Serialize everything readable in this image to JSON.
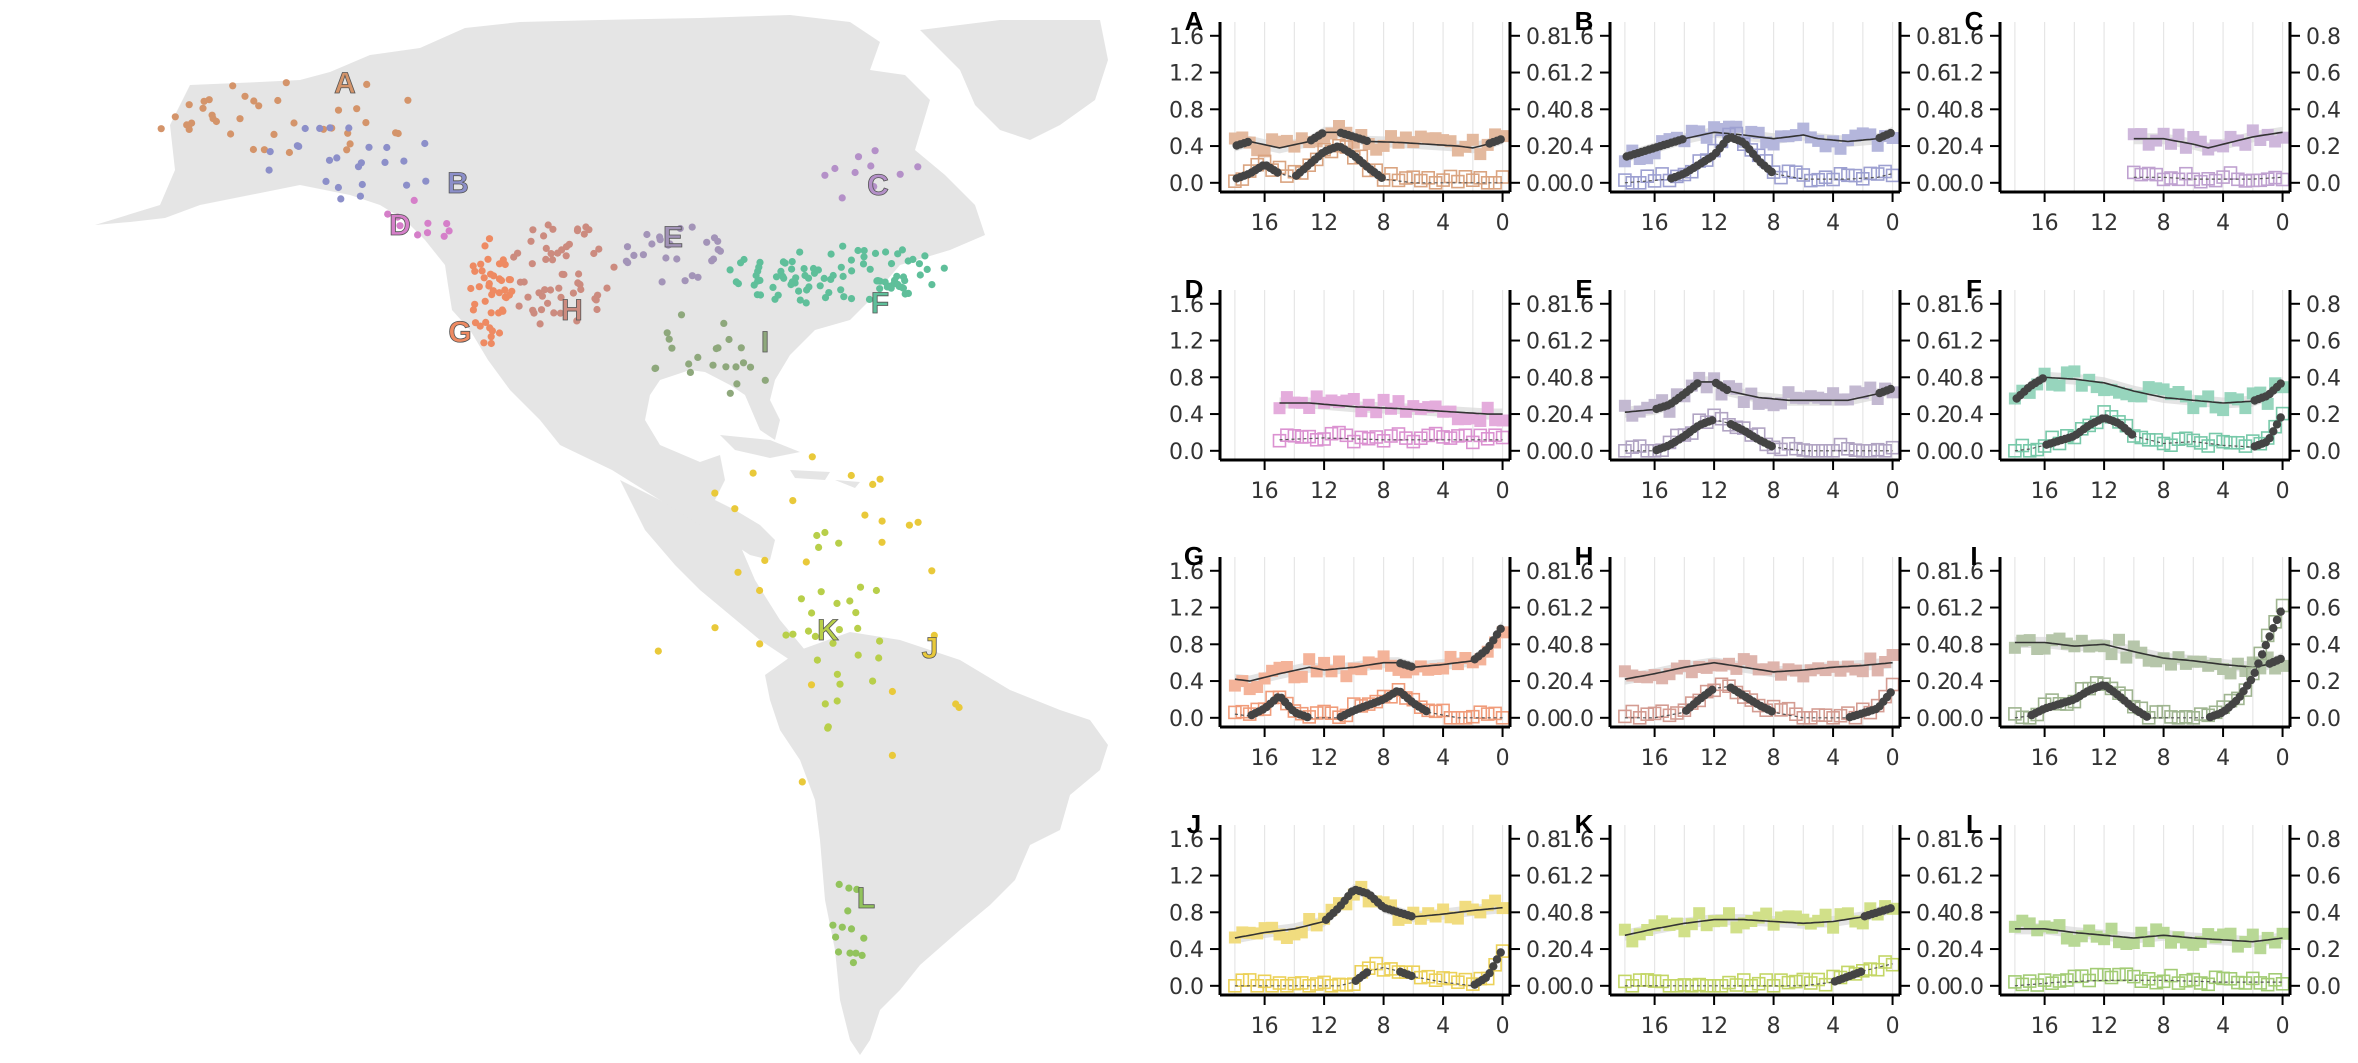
{
  "chart_data": {
    "type": "scatter",
    "description_note": "",
    "map": {
      "regions": [
        {
          "label": "A",
          "color": "#D4946A"
        },
        {
          "label": "B",
          "color": "#8C8FC9"
        },
        {
          "label": "C",
          "color": "#B490C8"
        },
        {
          "label": "D",
          "color": "#D57FC9"
        },
        {
          "label": "E",
          "color": "#A394B8"
        },
        {
          "label": "F",
          "color": "#5FBF9A"
        },
        {
          "label": "G",
          "color": "#EE8A62"
        },
        {
          "label": "H",
          "color": "#CC8B7F"
        },
        {
          "label": "I",
          "color": "#8EA87C"
        },
        {
          "label": "J",
          "color": "#E9C93A"
        },
        {
          "label": "K",
          "color": "#B8CF4A"
        },
        {
          "label": "L",
          "color": "#92C35C"
        }
      ]
    },
    "panel_axes": {
      "x_ticks": [
        "16",
        "12",
        "8",
        "4",
        "0"
      ],
      "x_tick_values": [
        16,
        12,
        8,
        4,
        0
      ],
      "xlim": [
        19,
        -0.5
      ],
      "y_left_ticks": [
        "0.0",
        "0.4",
        "0.8",
        "1.2",
        "1.6"
      ],
      "y_left_values": [
        0,
        0.4,
        0.8,
        1.2,
        1.6
      ],
      "y_left_lim": [
        -0.1,
        1.75
      ],
      "y_right_ticks": [
        "0.0",
        "0.2",
        "0.4",
        "0.6",
        "0.8"
      ],
      "y_right_values": [
        0,
        0.2,
        0.4,
        0.6,
        0.8
      ],
      "y_right_lim": [
        -0.05,
        0.875
      ]
    },
    "panels": [
      {
        "label": "A",
        "color": "#D4946A",
        "x_start": 18,
        "left_curve": [
          [
            18,
            0.4
          ],
          [
            17,
            0.45
          ],
          [
            15,
            0.38
          ],
          [
            13,
            0.45
          ],
          [
            12,
            0.55
          ],
          [
            11,
            0.55
          ],
          [
            9,
            0.45
          ],
          [
            7,
            0.44
          ],
          [
            5,
            0.42
          ],
          [
            3,
            0.4
          ],
          [
            2,
            0.38
          ],
          [
            1,
            0.42
          ],
          [
            0,
            0.48
          ]
        ],
        "right_curve": [
          [
            18,
            0.02
          ],
          [
            17,
            0.05
          ],
          [
            16,
            0.1
          ],
          [
            15,
            0.05
          ],
          [
            14,
            0.03
          ],
          [
            13,
            0.1
          ],
          [
            12,
            0.17
          ],
          [
            11,
            0.2
          ],
          [
            10,
            0.15
          ],
          [
            9,
            0.08
          ],
          [
            8,
            0.02
          ],
          [
            6,
            0.0
          ],
          [
            3,
            0.0
          ],
          [
            0,
            0.0
          ]
        ]
      },
      {
        "label": "B",
        "color": "#8C8FC9",
        "x_start": 18,
        "left_curve": [
          [
            18,
            0.28
          ],
          [
            16,
            0.38
          ],
          [
            14,
            0.48
          ],
          [
            12,
            0.55
          ],
          [
            10,
            0.52
          ],
          [
            8,
            0.48
          ],
          [
            6,
            0.52
          ],
          [
            5,
            0.48
          ],
          [
            3,
            0.45
          ],
          [
            1,
            0.48
          ],
          [
            0,
            0.55
          ]
        ],
        "right_curve": [
          [
            18,
            0.0
          ],
          [
            15,
            0.02
          ],
          [
            14,
            0.05
          ],
          [
            12,
            0.15
          ],
          [
            11,
            0.25
          ],
          [
            10,
            0.22
          ],
          [
            9,
            0.12
          ],
          [
            8,
            0.05
          ],
          [
            6,
            0.02
          ],
          [
            3,
            0.02
          ],
          [
            1,
            0.03
          ],
          [
            0,
            0.05
          ]
        ]
      },
      {
        "label": "C",
        "color": "#B490C8",
        "x_start": 10,
        "left_curve": [
          [
            10,
            0.48
          ],
          [
            8,
            0.48
          ],
          [
            6,
            0.42
          ],
          [
            5,
            0.38
          ],
          [
            4,
            0.42
          ],
          [
            2,
            0.5
          ],
          [
            0,
            0.55
          ]
        ],
        "right_curve": [
          [
            10,
            0.03
          ],
          [
            8,
            0.03
          ],
          [
            6,
            0.02
          ],
          [
            4,
            0.02
          ],
          [
            2,
            0.02
          ],
          [
            0,
            0.03
          ]
        ]
      },
      {
        "label": "D",
        "color": "#D57FC9",
        "x_start": 15,
        "left_curve": [
          [
            15,
            0.52
          ],
          [
            13,
            0.52
          ],
          [
            10,
            0.48
          ],
          [
            7,
            0.46
          ],
          [
            4,
            0.43
          ],
          [
            1,
            0.4
          ],
          [
            0,
            0.4
          ]
        ],
        "right_curve": [
          [
            15,
            0.06
          ],
          [
            12,
            0.07
          ],
          [
            8,
            0.06
          ],
          [
            4,
            0.06
          ],
          [
            0,
            0.06
          ]
        ]
      },
      {
        "label": "E",
        "color": "#A394B8",
        "x_start": 18,
        "left_curve": [
          [
            18,
            0.42
          ],
          [
            16,
            0.45
          ],
          [
            15,
            0.5
          ],
          [
            14,
            0.62
          ],
          [
            13,
            0.75
          ],
          [
            12,
            0.75
          ],
          [
            11,
            0.65
          ],
          [
            9,
            0.58
          ],
          [
            7,
            0.55
          ],
          [
            5,
            0.55
          ],
          [
            3,
            0.55
          ],
          [
            1,
            0.62
          ],
          [
            0,
            0.68
          ]
        ],
        "right_curve": [
          [
            18,
            0.0
          ],
          [
            16,
            0.0
          ],
          [
            15,
            0.03
          ],
          [
            14,
            0.08
          ],
          [
            13,
            0.14
          ],
          [
            12,
            0.17
          ],
          [
            11,
            0.15
          ],
          [
            10,
            0.11
          ],
          [
            9,
            0.06
          ],
          [
            8,
            0.02
          ],
          [
            6,
            0.0
          ],
          [
            3,
            0.0
          ],
          [
            0,
            0.0
          ]
        ]
      },
      {
        "label": "F",
        "color": "#5FBF9A",
        "x_start": 18,
        "left_curve": [
          [
            18,
            0.55
          ],
          [
            17,
            0.7
          ],
          [
            16,
            0.8
          ],
          [
            14,
            0.78
          ],
          [
            12,
            0.74
          ],
          [
            10,
            0.65
          ],
          [
            8,
            0.58
          ],
          [
            6,
            0.55
          ],
          [
            4,
            0.52
          ],
          [
            2,
            0.54
          ],
          [
            1,
            0.6
          ],
          [
            0,
            0.75
          ]
        ],
        "right_curve": [
          [
            18,
            0.0
          ],
          [
            17,
            0.01
          ],
          [
            16,
            0.03
          ],
          [
            14,
            0.08
          ],
          [
            13,
            0.14
          ],
          [
            12,
            0.18
          ],
          [
            11,
            0.15
          ],
          [
            10,
            0.08
          ],
          [
            8,
            0.04
          ],
          [
            6,
            0.05
          ],
          [
            4,
            0.03
          ],
          [
            2,
            0.02
          ],
          [
            1,
            0.05
          ],
          [
            0,
            0.2
          ]
        ]
      },
      {
        "label": "G",
        "color": "#EE8A62",
        "x_start": 18,
        "left_curve": [
          [
            18,
            0.42
          ],
          [
            17,
            0.4
          ],
          [
            15,
            0.48
          ],
          [
            13,
            0.55
          ],
          [
            12,
            0.52
          ],
          [
            10,
            0.55
          ],
          [
            8,
            0.6
          ],
          [
            7,
            0.6
          ],
          [
            6,
            0.55
          ],
          [
            4,
            0.58
          ],
          [
            2,
            0.62
          ],
          [
            1,
            0.75
          ],
          [
            0,
            1.0
          ]
        ],
        "right_curve": [
          [
            18,
            0.02
          ],
          [
            17,
            0.01
          ],
          [
            16,
            0.05
          ],
          [
            15,
            0.12
          ],
          [
            14,
            0.03
          ],
          [
            13,
            0.0
          ],
          [
            11,
            0.0
          ],
          [
            10,
            0.04
          ],
          [
            8,
            0.1
          ],
          [
            7,
            0.15
          ],
          [
            6,
            0.08
          ],
          [
            5,
            0.03
          ],
          [
            3,
            0.0
          ],
          [
            1,
            0.0
          ],
          [
            0,
            0.0
          ]
        ]
      },
      {
        "label": "H",
        "color": "#CC8B7F",
        "x_start": 18,
        "left_curve": [
          [
            18,
            0.42
          ],
          [
            16,
            0.48
          ],
          [
            14,
            0.55
          ],
          [
            12,
            0.6
          ],
          [
            10,
            0.55
          ],
          [
            8,
            0.5
          ],
          [
            6,
            0.52
          ],
          [
            4,
            0.55
          ],
          [
            2,
            0.57
          ],
          [
            0,
            0.6
          ]
        ],
        "right_curve": [
          [
            18,
            0.0
          ],
          [
            16,
            0.0
          ],
          [
            14,
            0.03
          ],
          [
            13,
            0.1
          ],
          [
            12,
            0.16
          ],
          [
            11,
            0.17
          ],
          [
            10,
            0.12
          ],
          [
            9,
            0.07
          ],
          [
            8,
            0.03
          ],
          [
            6,
            0.0
          ],
          [
            3,
            0.0
          ],
          [
            1,
            0.05
          ],
          [
            0,
            0.15
          ]
        ]
      },
      {
        "label": "I",
        "color": "#8EA87C",
        "x_start": 18,
        "left_curve": [
          [
            18,
            0.82
          ],
          [
            16,
            0.82
          ],
          [
            14,
            0.78
          ],
          [
            12,
            0.8
          ],
          [
            10,
            0.72
          ],
          [
            8,
            0.65
          ],
          [
            6,
            0.62
          ],
          [
            4,
            0.58
          ],
          [
            2,
            0.55
          ],
          [
            1,
            0.58
          ],
          [
            0,
            0.65
          ]
        ],
        "right_curve": [
          [
            18,
            0.0
          ],
          [
            17,
            0.01
          ],
          [
            16,
            0.05
          ],
          [
            14,
            0.1
          ],
          [
            13,
            0.15
          ],
          [
            12,
            0.18
          ],
          [
            11,
            0.12
          ],
          [
            10,
            0.05
          ],
          [
            9,
            0.0
          ],
          [
            7,
            0.0
          ],
          [
            5,
            0.0
          ],
          [
            4,
            0.03
          ],
          [
            3,
            0.1
          ],
          [
            2,
            0.22
          ],
          [
            1,
            0.42
          ],
          [
            0,
            0.6
          ]
        ]
      },
      {
        "label": "J",
        "color": "#E9C93A",
        "x_start": 18,
        "left_curve": [
          [
            18,
            0.52
          ],
          [
            16,
            0.58
          ],
          [
            14,
            0.62
          ],
          [
            12,
            0.7
          ],
          [
            11,
            0.85
          ],
          [
            10,
            1.05
          ],
          [
            9,
            1.0
          ],
          [
            8,
            0.85
          ],
          [
            6,
            0.75
          ],
          [
            4,
            0.78
          ],
          [
            2,
            0.82
          ],
          [
            0,
            0.85
          ]
        ],
        "right_curve": [
          [
            18,
            0.0
          ],
          [
            14,
            0.0
          ],
          [
            11,
            0.0
          ],
          [
            10,
            0.02
          ],
          [
            9,
            0.08
          ],
          [
            8,
            0.1
          ],
          [
            7,
            0.08
          ],
          [
            6,
            0.05
          ],
          [
            4,
            0.02
          ],
          [
            2,
            0.0
          ],
          [
            1,
            0.05
          ],
          [
            0,
            0.2
          ]
        ]
      },
      {
        "label": "K",
        "color": "#B8CF4A",
        "x_start": 18,
        "left_curve": [
          [
            18,
            0.55
          ],
          [
            16,
            0.62
          ],
          [
            14,
            0.68
          ],
          [
            12,
            0.72
          ],
          [
            10,
            0.72
          ],
          [
            8,
            0.7
          ],
          [
            6,
            0.68
          ],
          [
            4,
            0.7
          ],
          [
            2,
            0.75
          ],
          [
            0,
            0.85
          ]
        ],
        "right_curve": [
          [
            18,
            0.0
          ],
          [
            14,
            0.0
          ],
          [
            10,
            0.0
          ],
          [
            6,
            0.0
          ],
          [
            4,
            0.02
          ],
          [
            3,
            0.05
          ],
          [
            2,
            0.08
          ],
          [
            1,
            0.1
          ],
          [
            0,
            0.12
          ]
        ]
      },
      {
        "label": "L",
        "color": "#92C35C",
        "x_start": 18,
        "left_curve": [
          [
            18,
            0.62
          ],
          [
            16,
            0.62
          ],
          [
            14,
            0.58
          ],
          [
            12,
            0.55
          ],
          [
            10,
            0.52
          ],
          [
            8,
            0.55
          ],
          [
            6,
            0.52
          ],
          [
            4,
            0.5
          ],
          [
            2,
            0.48
          ],
          [
            0,
            0.52
          ]
        ],
        "right_curve": [
          [
            18,
            0.0
          ],
          [
            15,
            0.02
          ],
          [
            12,
            0.03
          ],
          [
            8,
            0.03
          ],
          [
            4,
            0.02
          ],
          [
            0,
            0.02
          ]
        ]
      }
    ]
  }
}
